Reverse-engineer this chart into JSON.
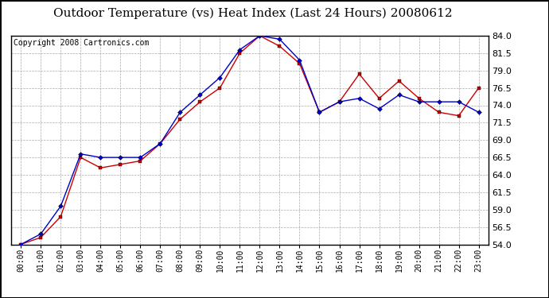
{
  "title": "Outdoor Temperature (vs) Heat Index (Last 24 Hours) 20080612",
  "copyright_text": "Copyright 2008 Cartronics.com",
  "x_labels": [
    "00:00",
    "01:00",
    "02:00",
    "03:00",
    "04:00",
    "05:00",
    "06:00",
    "07:00",
    "08:00",
    "09:00",
    "10:00",
    "11:00",
    "12:00",
    "13:00",
    "14:00",
    "15:00",
    "16:00",
    "17:00",
    "18:00",
    "19:00",
    "20:00",
    "21:00",
    "22:00",
    "23:00"
  ],
  "temp_data": [
    54.0,
    55.0,
    58.0,
    66.5,
    65.0,
    65.5,
    66.0,
    68.5,
    72.0,
    74.5,
    76.5,
    81.5,
    84.0,
    82.5,
    80.0,
    73.0,
    74.5,
    78.5,
    75.0,
    77.5,
    75.0,
    73.0,
    72.5,
    76.5
  ],
  "heat_data": [
    54.0,
    55.5,
    59.5,
    67.0,
    66.5,
    66.5,
    66.5,
    68.5,
    73.0,
    75.5,
    78.0,
    82.0,
    84.0,
    83.5,
    80.5,
    73.0,
    74.5,
    75.0,
    73.5,
    75.5,
    74.5,
    74.5,
    74.5,
    73.0
  ],
  "temp_color": "#cc0000",
  "heat_color": "#0000cc",
  "background_color": "#ffffff",
  "plot_bg_color": "#ffffff",
  "grid_color": "#aaaaaa",
  "ylim_min": 54.0,
  "ylim_max": 84.0,
  "ytick_step": 2.5,
  "title_fontsize": 11,
  "copyright_fontsize": 7,
  "tick_fontsize": 7
}
